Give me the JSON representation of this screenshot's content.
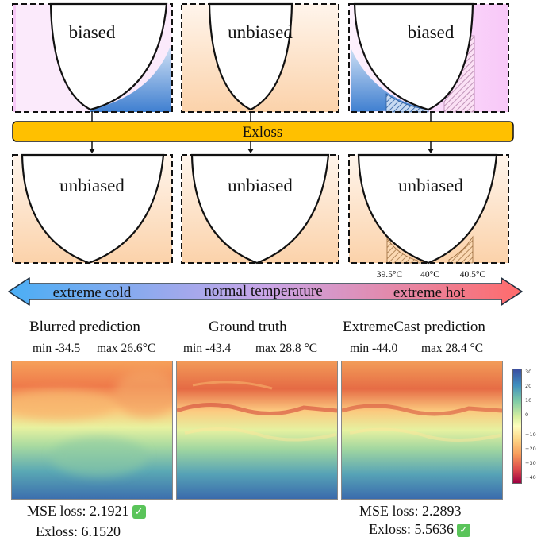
{
  "top_panels": [
    {
      "label": "biased",
      "bias": "left"
    },
    {
      "label": "unbiased",
      "bias": "none"
    },
    {
      "label": "biased",
      "bias": "right"
    }
  ],
  "exloss_bar": {
    "label": "Exloss",
    "color": "#FFC000"
  },
  "bottom_panels": [
    {
      "label": "unbiased"
    },
    {
      "label": "unbiased"
    },
    {
      "label": "unbiased"
    }
  ],
  "temp_ticks": [
    "39.5°C",
    "40°C",
    "40.5°C"
  ],
  "temperature_axis": {
    "left_label": "extreme cold",
    "center_label": "normal temperature",
    "right_label": "extreme hot",
    "cold_color": "#4AAEF5",
    "hot_color": "#FF6B6B"
  },
  "maps": [
    {
      "title": "Blurred prediction",
      "min": "min -34.5",
      "max": "max 26.6",
      "unit": "°C",
      "mse": "MSE loss: 2.1921",
      "mse_best": true,
      "exloss": "Exloss: 6.1520",
      "exloss_best": false
    },
    {
      "title": "Ground truth",
      "min": "min -43.4",
      "max": "max 28.8",
      "unit": " °C"
    },
    {
      "title": "ExtremeCast prediction",
      "min": "min -44.0",
      "max": "max 28.4",
      "unit": " °C",
      "mse": "MSE loss: 2.2893",
      "mse_best": false,
      "exloss": "Exloss: 5.5636",
      "exloss_best": true
    }
  ],
  "check_icon": "✓",
  "colorbar": {
    "colormap": "Spectral",
    "ticks": [
      "30",
      "20",
      "10",
      "0",
      "−10",
      "−20",
      "−30",
      "−40"
    ]
  }
}
